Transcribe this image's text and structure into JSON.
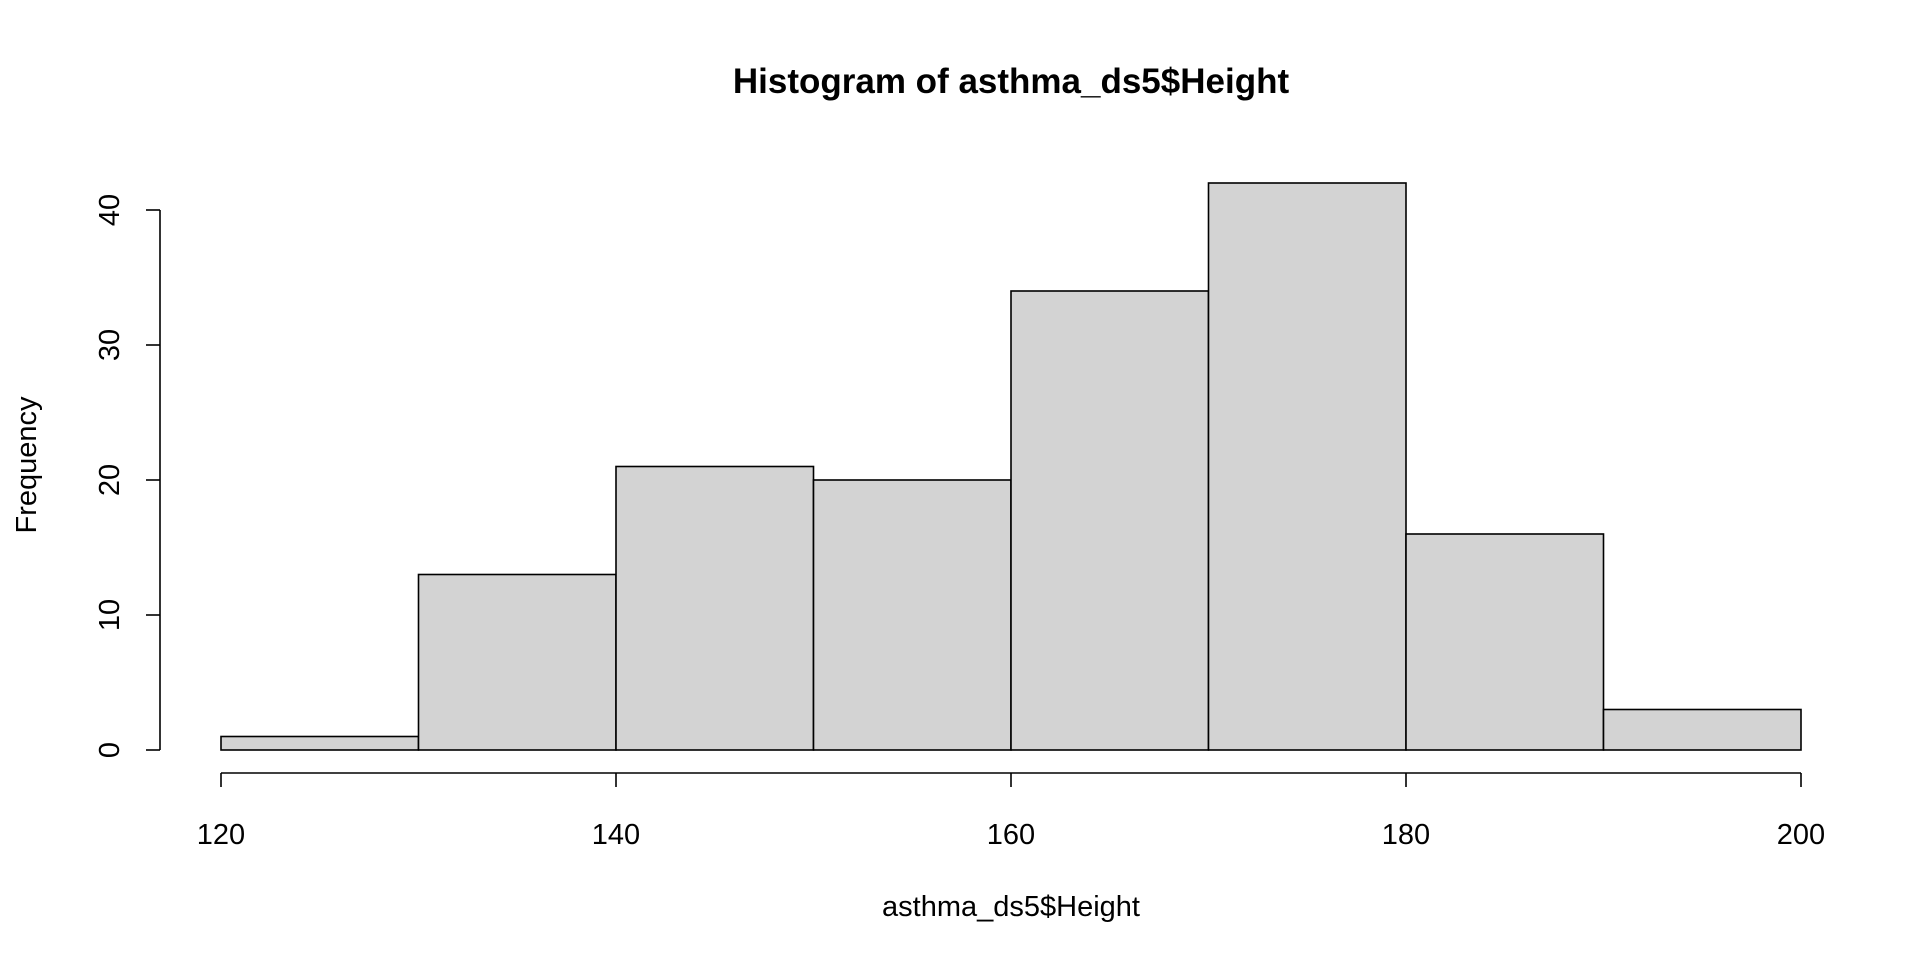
{
  "chart_data": {
    "type": "bar",
    "subtype": "histogram",
    "title": "Histogram of asthma_ds5$Height",
    "xlabel": "asthma_ds5$Height",
    "ylabel": "Frequency",
    "bins": [
      {
        "start": 120,
        "end": 130,
        "count": 1
      },
      {
        "start": 130,
        "end": 140,
        "count": 13
      },
      {
        "start": 140,
        "end": 150,
        "count": 21
      },
      {
        "start": 150,
        "end": 160,
        "count": 20
      },
      {
        "start": 160,
        "end": 170,
        "count": 34
      },
      {
        "start": 170,
        "end": 180,
        "count": 42
      },
      {
        "start": 180,
        "end": 190,
        "count": 16
      },
      {
        "start": 190,
        "end": 200,
        "count": 3
      }
    ],
    "xlim": [
      120,
      200
    ],
    "ylim": [
      0,
      42
    ],
    "xticks": [
      120,
      140,
      160,
      180,
      200
    ],
    "yticks": [
      0,
      10,
      20,
      30,
      40
    ],
    "grid": false,
    "colors": {
      "bar_fill": "#d3d3d3",
      "bar_stroke": "#000000",
      "background": "#ffffff"
    }
  }
}
